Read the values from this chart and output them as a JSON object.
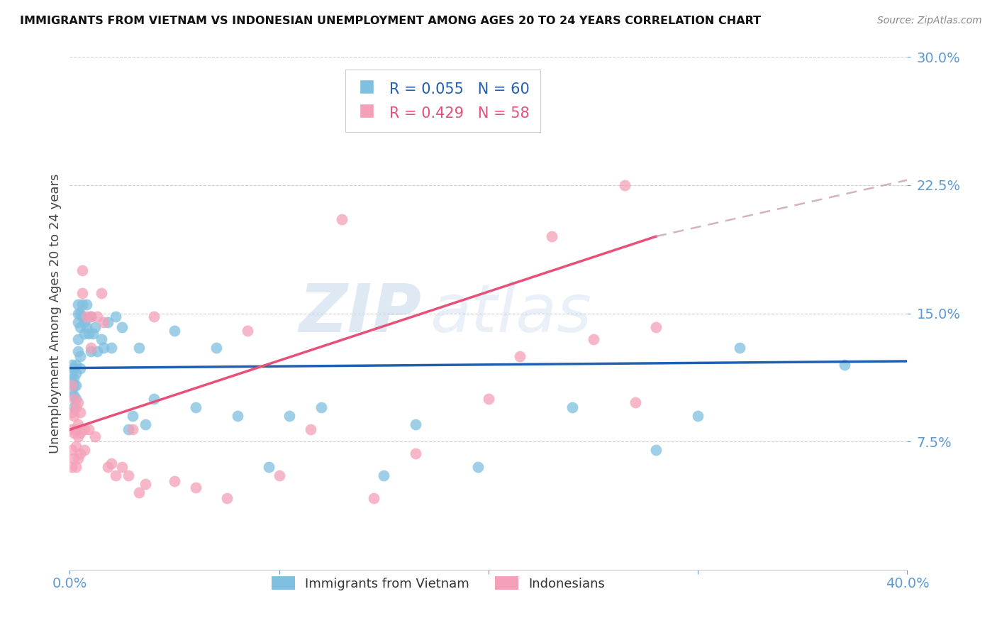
{
  "title": "IMMIGRANTS FROM VIETNAM VS INDONESIAN UNEMPLOYMENT AMONG AGES 20 TO 24 YEARS CORRELATION CHART",
  "source": "Source: ZipAtlas.com",
  "ylabel": "Unemployment Among Ages 20 to 24 years",
  "xlim": [
    0,
    0.4
  ],
  "ylim": [
    0,
    0.3
  ],
  "yticks": [
    0.075,
    0.15,
    0.225,
    0.3
  ],
  "xticks": [
    0.0,
    0.1,
    0.2,
    0.3,
    0.4
  ],
  "series1_label": "Immigrants from Vietnam",
  "series1_color": "#7fbfdf",
  "series1_R": "R = 0.055",
  "series1_N": "N = 60",
  "series1_line_color": "#2060b0",
  "series2_label": "Indonesians",
  "series2_color": "#f4a0b8",
  "series2_R": "R = 0.429",
  "series2_N": "N = 58",
  "series2_line_color": "#e8507a",
  "watermark_text": "ZIP",
  "watermark_text2": "atlas",
  "background_color": "#ffffff",
  "grid_color": "#d0d0d0",
  "tick_color": "#5b9bd5",
  "series1_x": [
    0.001,
    0.001,
    0.001,
    0.001,
    0.002,
    0.002,
    0.002,
    0.002,
    0.002,
    0.003,
    0.003,
    0.003,
    0.003,
    0.004,
    0.004,
    0.004,
    0.004,
    0.004,
    0.005,
    0.005,
    0.005,
    0.005,
    0.006,
    0.006,
    0.007,
    0.007,
    0.008,
    0.008,
    0.009,
    0.01,
    0.01,
    0.011,
    0.012,
    0.013,
    0.015,
    0.016,
    0.018,
    0.02,
    0.022,
    0.025,
    0.028,
    0.03,
    0.033,
    0.036,
    0.04,
    0.05,
    0.06,
    0.07,
    0.08,
    0.095,
    0.105,
    0.12,
    0.15,
    0.165,
    0.195,
    0.24,
    0.28,
    0.3,
    0.32,
    0.37
  ],
  "series1_y": [
    0.115,
    0.11,
    0.12,
    0.105,
    0.118,
    0.108,
    0.095,
    0.112,
    0.102,
    0.12,
    0.115,
    0.1,
    0.108,
    0.155,
    0.15,
    0.145,
    0.135,
    0.128,
    0.15,
    0.142,
    0.125,
    0.118,
    0.155,
    0.148,
    0.145,
    0.138,
    0.142,
    0.155,
    0.138,
    0.148,
    0.128,
    0.138,
    0.142,
    0.128,
    0.135,
    0.13,
    0.145,
    0.13,
    0.148,
    0.142,
    0.082,
    0.09,
    0.13,
    0.085,
    0.1,
    0.14,
    0.095,
    0.13,
    0.09,
    0.06,
    0.09,
    0.095,
    0.055,
    0.085,
    0.06,
    0.095,
    0.07,
    0.09,
    0.13,
    0.12
  ],
  "series2_x": [
    0.001,
    0.001,
    0.001,
    0.001,
    0.001,
    0.002,
    0.002,
    0.002,
    0.002,
    0.003,
    0.003,
    0.003,
    0.003,
    0.004,
    0.004,
    0.004,
    0.004,
    0.005,
    0.005,
    0.005,
    0.006,
    0.006,
    0.007,
    0.007,
    0.008,
    0.009,
    0.01,
    0.01,
    0.012,
    0.013,
    0.015,
    0.016,
    0.018,
    0.02,
    0.022,
    0.025,
    0.028,
    0.03,
    0.033,
    0.036,
    0.04,
    0.05,
    0.06,
    0.075,
    0.085,
    0.1,
    0.115,
    0.13,
    0.145,
    0.165,
    0.175,
    0.2,
    0.215,
    0.23,
    0.25,
    0.265,
    0.27,
    0.28
  ],
  "series2_y": [
    0.108,
    0.092,
    0.082,
    0.07,
    0.06,
    0.1,
    0.09,
    0.08,
    0.065,
    0.095,
    0.082,
    0.072,
    0.06,
    0.085,
    0.098,
    0.078,
    0.065,
    0.092,
    0.08,
    0.068,
    0.175,
    0.162,
    0.082,
    0.07,
    0.148,
    0.082,
    0.148,
    0.13,
    0.078,
    0.148,
    0.162,
    0.145,
    0.06,
    0.062,
    0.055,
    0.06,
    0.055,
    0.082,
    0.045,
    0.05,
    0.148,
    0.052,
    0.048,
    0.042,
    0.14,
    0.055,
    0.082,
    0.205,
    0.042,
    0.068,
    0.282,
    0.1,
    0.125,
    0.195,
    0.135,
    0.225,
    0.098,
    0.142
  ],
  "trend1_x0": 0.0,
  "trend1_y0": 0.118,
  "trend1_x1": 0.4,
  "trend1_y1": 0.122,
  "trend2_x0": 0.0,
  "trend2_y0": 0.082,
  "trend2_x1": 0.28,
  "trend2_y1": 0.195,
  "trend2_dash_x0": 0.28,
  "trend2_dash_y0": 0.195,
  "trend2_dash_x1": 0.4,
  "trend2_dash_y1": 0.228
}
